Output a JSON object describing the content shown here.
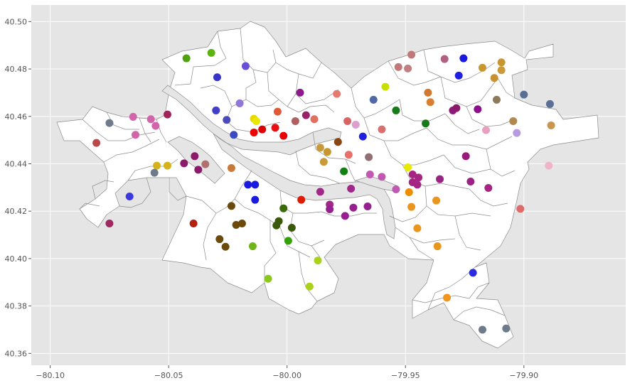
{
  "chart_data": {
    "type": "scatter",
    "title": "",
    "xlabel": "",
    "ylabel": "",
    "xlim": [
      -80.108,
      -79.857
    ],
    "ylim": [
      40.355,
      40.507
    ],
    "xticks": [
      -80.1,
      -80.05,
      -80.0,
      -79.95,
      -79.9
    ],
    "xtick_labels": [
      "−80.10",
      "−80.05",
      "−80.00",
      "−79.95",
      "−79.90"
    ],
    "yticks": [
      40.36,
      40.38,
      40.4,
      40.42,
      40.44,
      40.46,
      40.48,
      40.5
    ],
    "ytick_labels": [
      "40.36",
      "40.38",
      "40.40",
      "40.42",
      "40.44",
      "40.46",
      "40.48",
      "40.50"
    ],
    "grid": true,
    "legend": "none",
    "background": "#e5e5e5",
    "basemap": "city neighborhood boundaries (white polygons, gray edges)",
    "points": [
      {
        "x": -80.0425,
        "y": 40.4845,
        "color": "#4fa30c"
      },
      {
        "x": -80.032,
        "y": 40.4868,
        "color": "#5cb30e"
      },
      {
        "x": -80.0295,
        "y": 40.4765,
        "color": "#3535c8"
      },
      {
        "x": -80.0175,
        "y": 40.4812,
        "color": "#6a4fd6"
      },
      {
        "x": -80.03,
        "y": 40.4625,
        "color": "#3f3fc8"
      },
      {
        "x": -80.0255,
        "y": 40.4585,
        "color": "#4a4ab8"
      },
      {
        "x": -80.0225,
        "y": 40.4522,
        "color": "#3a4ac0"
      },
      {
        "x": -80.02,
        "y": 40.4655,
        "color": "#9077d6"
      },
      {
        "x": -80.014,
        "y": 40.459,
        "color": "#e8d800"
      },
      {
        "x": -80.013,
        "y": 40.458,
        "color": "#e8e800"
      },
      {
        "x": -80.014,
        "y": 40.4532,
        "color": "#ee0000"
      },
      {
        "x": -80.0105,
        "y": 40.4545,
        "color": "#dd0000"
      },
      {
        "x": -80.005,
        "y": 40.4552,
        "color": "#e81010"
      },
      {
        "x": -80.0015,
        "y": 40.4518,
        "color": "#e80000"
      },
      {
        "x": -80.004,
        "y": 40.462,
        "color": "#e05a3a"
      },
      {
        "x": -79.9945,
        "y": 40.47,
        "color": "#8c1a8c"
      },
      {
        "x": -79.992,
        "y": 40.4605,
        "color": "#99206a"
      },
      {
        "x": -79.9965,
        "y": 40.458,
        "color": "#b06060"
      },
      {
        "x": -79.9885,
        "y": 40.4588,
        "color": "#e07060"
      },
      {
        "x": -79.979,
        "y": 40.4695,
        "color": "#e57a6e"
      },
      {
        "x": -79.9745,
        "y": 40.458,
        "color": "#d86464"
      },
      {
        "x": -79.971,
        "y": 40.4565,
        "color": "#dca0cc"
      },
      {
        "x": -79.986,
        "y": 40.4468,
        "color": "#c89a3a"
      },
      {
        "x": -79.983,
        "y": 40.445,
        "color": "#c8962e"
      },
      {
        "x": -79.9845,
        "y": 40.4408,
        "color": "#c89a3a"
      },
      {
        "x": -79.9785,
        "y": 40.4492,
        "color": "#8b4513"
      },
      {
        "x": -79.974,
        "y": 40.4438,
        "color": "#e8706a"
      },
      {
        "x": -79.976,
        "y": 40.4368,
        "color": "#128012"
      },
      {
        "x": -79.968,
        "y": 40.4515,
        "color": "#2020e0"
      },
      {
        "x": -79.9655,
        "y": 40.4428,
        "color": "#917074"
      },
      {
        "x": -79.96,
        "y": 40.4545,
        "color": "#d87070"
      },
      {
        "x": -79.9635,
        "y": 40.467,
        "color": "#5068a8"
      },
      {
        "x": -79.9585,
        "y": 40.4725,
        "color": "#c8e000"
      },
      {
        "x": -79.954,
        "y": 40.4625,
        "color": "#197a19"
      },
      {
        "x": -79.9475,
        "y": 40.486,
        "color": "#c07878"
      },
      {
        "x": -79.953,
        "y": 40.4808,
        "color": "#c07878"
      },
      {
        "x": -79.949,
        "y": 40.4802,
        "color": "#c08080"
      },
      {
        "x": -79.9405,
        "y": 40.47,
        "color": "#d2782e"
      },
      {
        "x": -79.9395,
        "y": 40.466,
        "color": "#d98030"
      },
      {
        "x": -79.9415,
        "y": 40.457,
        "color": "#1a7a1a"
      },
      {
        "x": -79.9335,
        "y": 40.4842,
        "color": "#b06080"
      },
      {
        "x": -79.9255,
        "y": 40.4845,
        "color": "#1a1ae0"
      },
      {
        "x": -79.9275,
        "y": 40.4772,
        "color": "#2020e0"
      },
      {
        "x": -79.93,
        "y": 40.4625,
        "color": "#8c1a7a"
      },
      {
        "x": -79.9285,
        "y": 40.4635,
        "color": "#8c1a6a"
      },
      {
        "x": -79.9195,
        "y": 40.463,
        "color": "#8c108c"
      },
      {
        "x": -79.9175,
        "y": 40.4805,
        "color": "#c8962e"
      },
      {
        "x": -79.9125,
        "y": 40.4762,
        "color": "#c8902e"
      },
      {
        "x": -79.9095,
        "y": 40.4828,
        "color": "#c8962e"
      },
      {
        "x": -79.9095,
        "y": 40.4795,
        "color": "#c89a3a"
      },
      {
        "x": -79.9115,
        "y": 40.467,
        "color": "#8c7a5a"
      },
      {
        "x": -79.9,
        "y": 40.4692,
        "color": "#5a6e96"
      },
      {
        "x": -79.889,
        "y": 40.4652,
        "color": "#5a6e96"
      },
      {
        "x": -79.9045,
        "y": 40.458,
        "color": "#b08850"
      },
      {
        "x": -79.903,
        "y": 40.453,
        "color": "#b89ae0"
      },
      {
        "x": -79.8885,
        "y": 40.4562,
        "color": "#c89650"
      },
      {
        "x": -79.916,
        "y": 40.4542,
        "color": "#e8a0c0"
      },
      {
        "x": -79.8895,
        "y": 40.4392,
        "color": "#f0b4c8"
      },
      {
        "x": -79.9245,
        "y": 40.4432,
        "color": "#9a1a7a"
      },
      {
        "x": -79.949,
        "y": 40.4385,
        "color": "#e8e800"
      },
      {
        "x": -79.947,
        "y": 40.4355,
        "color": "#a62482"
      },
      {
        "x": -79.9445,
        "y": 40.4342,
        "color": "#a62482"
      },
      {
        "x": -79.947,
        "y": 40.4322,
        "color": "#a62482"
      },
      {
        "x": -79.945,
        "y": 40.4312,
        "color": "#a62482"
      },
      {
        "x": -79.9355,
        "y": 40.4335,
        "color": "#9a2282"
      },
      {
        "x": -79.9225,
        "y": 40.4325,
        "color": "#9a2282"
      },
      {
        "x": -79.915,
        "y": 40.4298,
        "color": "#a62482"
      },
      {
        "x": -79.9015,
        "y": 40.421,
        "color": "#e06a6a"
      },
      {
        "x": -79.96,
        "y": 40.4345,
        "color": "#c05ab0"
      },
      {
        "x": -79.965,
        "y": 40.4355,
        "color": "#c05ab0"
      },
      {
        "x": -79.954,
        "y": 40.4292,
        "color": "#c05ab0"
      },
      {
        "x": -79.9485,
        "y": 40.428,
        "color": "#f08c00"
      },
      {
        "x": -79.9475,
        "y": 40.4218,
        "color": "#e8961e"
      },
      {
        "x": -79.937,
        "y": 40.4245,
        "color": "#e8961e"
      },
      {
        "x": -79.945,
        "y": 40.4128,
        "color": "#e8961e"
      },
      {
        "x": -79.9365,
        "y": 40.4052,
        "color": "#e8961e"
      },
      {
        "x": -79.9325,
        "y": 40.3835,
        "color": "#f0961e"
      },
      {
        "x": -79.9215,
        "y": 40.394,
        "color": "#2a2ae0"
      },
      {
        "x": -79.9175,
        "y": 40.37,
        "color": "#6f7b8a"
      },
      {
        "x": -79.9075,
        "y": 40.3705,
        "color": "#6f7b8a"
      },
      {
        "x": -79.973,
        "y": 40.4295,
        "color": "#a02888"
      },
      {
        "x": -79.986,
        "y": 40.4282,
        "color": "#a02888"
      },
      {
        "x": -79.982,
        "y": 40.4228,
        "color": "#a02888"
      },
      {
        "x": -79.982,
        "y": 40.4208,
        "color": "#962090"
      },
      {
        "x": -79.972,
        "y": 40.4215,
        "color": "#962090"
      },
      {
        "x": -79.966,
        "y": 40.422,
        "color": "#962090"
      },
      {
        "x": -79.9755,
        "y": 40.418,
        "color": "#962090"
      },
      {
        "x": -79.994,
        "y": 40.4248,
        "color": "#e01a00"
      },
      {
        "x": -80.0165,
        "y": 40.4312,
        "color": "#1a1ae0"
      },
      {
        "x": -80.0135,
        "y": 40.4312,
        "color": "#1a1ae0"
      },
      {
        "x": -80.0135,
        "y": 40.4248,
        "color": "#1a1ae0"
      },
      {
        "x": -80.0015,
        "y": 40.4212,
        "color": "#3a6a0a"
      },
      {
        "x": -80.0035,
        "y": 40.4158,
        "color": "#3a5a0a"
      },
      {
        "x": -80.0045,
        "y": 40.414,
        "color": "#3a5a0a"
      },
      {
        "x": -79.998,
        "y": 40.413,
        "color": "#3a5a0a"
      },
      {
        "x": -79.9995,
        "y": 40.4075,
        "color": "#34a00a"
      },
      {
        "x": -80.0235,
        "y": 40.4222,
        "color": "#6b4a0a"
      },
      {
        "x": -80.0215,
        "y": 40.4142,
        "color": "#6b4a0a"
      },
      {
        "x": -80.019,
        "y": 40.4148,
        "color": "#6b4a0a"
      },
      {
        "x": -80.0285,
        "y": 40.4082,
        "color": "#6b4a0a"
      },
      {
        "x": -80.026,
        "y": 40.405,
        "color": "#6b4a0a"
      },
      {
        "x": -80.0145,
        "y": 40.4052,
        "color": "#6fb41a"
      },
      {
        "x": -80.008,
        "y": 40.3915,
        "color": "#8cc81a"
      },
      {
        "x": -79.987,
        "y": 40.3992,
        "color": "#aad21a"
      },
      {
        "x": -79.9905,
        "y": 40.3882,
        "color": "#aad21a"
      },
      {
        "x": -80.0235,
        "y": 40.4382,
        "color": "#c87a3a"
      },
      {
        "x": -80.039,
        "y": 40.4432,
        "color": "#8c1a6a"
      },
      {
        "x": -80.0435,
        "y": 40.4402,
        "color": "#8c1a6a"
      },
      {
        "x": -80.0375,
        "y": 40.4375,
        "color": "#8c1a6a"
      },
      {
        "x": -80.0345,
        "y": 40.4398,
        "color": "#b07070"
      },
      {
        "x": -80.0505,
        "y": 40.4392,
        "color": "#d4b41a"
      },
      {
        "x": -80.055,
        "y": 40.4392,
        "color": "#d4b41a"
      },
      {
        "x": -80.056,
        "y": 40.4362,
        "color": "#6f7b8a"
      },
      {
        "x": -80.0505,
        "y": 40.4608,
        "color": "#a0245a"
      },
      {
        "x": -80.0575,
        "y": 40.4588,
        "color": "#d264aa"
      },
      {
        "x": -80.0555,
        "y": 40.456,
        "color": "#d264aa"
      },
      {
        "x": -80.065,
        "y": 40.4598,
        "color": "#d264aa"
      },
      {
        "x": -80.064,
        "y": 40.4522,
        "color": "#d264aa"
      },
      {
        "x": -80.075,
        "y": 40.4572,
        "color": "#6f7b8a"
      },
      {
        "x": -80.0805,
        "y": 40.4488,
        "color": "#b84a4a"
      },
      {
        "x": -80.0395,
        "y": 40.4148,
        "color": "#b42010"
      },
      {
        "x": -80.0665,
        "y": 40.4262,
        "color": "#3a3ae0"
      },
      {
        "x": -80.075,
        "y": 40.4148,
        "color": "#a02860"
      }
    ]
  }
}
